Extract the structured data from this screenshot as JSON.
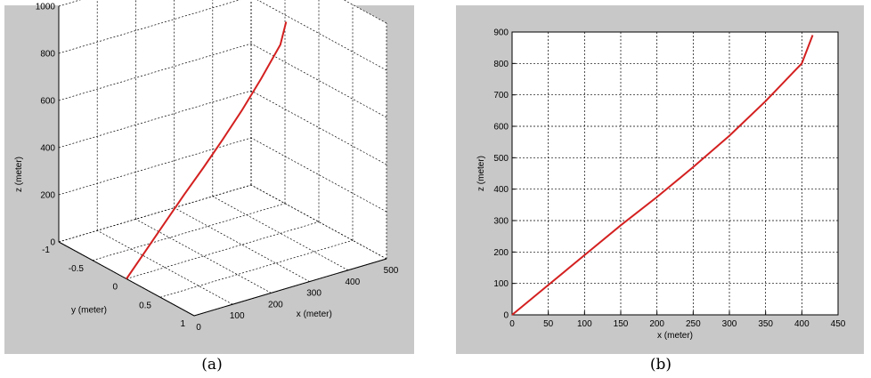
{
  "captions": {
    "a": "(a)",
    "b": "(b)"
  },
  "colors": {
    "figure_bg": "#c8c8c8",
    "axes_bg": "#ffffff",
    "trajectory": "#d42020",
    "grid": "#000000"
  },
  "chart_data": [
    {
      "type": "line",
      "projection": "3d",
      "title": "",
      "xlabel": "x (meter)",
      "ylabel": "y (meter)",
      "zlabel": "z (meter)",
      "xlim": [
        0,
        500
      ],
      "ylim": [
        -1,
        1
      ],
      "zlim": [
        0,
        1000
      ],
      "xticks": [
        "0",
        "100",
        "200",
        "300",
        "400",
        "500"
      ],
      "yticks": [
        "-1",
        "-0.5",
        "0",
        "0.5",
        "1"
      ],
      "zticks": [
        "0",
        "200",
        "400",
        "600",
        "800",
        "1000"
      ],
      "grid": true,
      "series": [
        {
          "x": [
            0,
            50,
            100,
            150,
            200,
            250,
            300,
            350,
            400,
            415
          ],
          "y": [
            0,
            0,
            0,
            0,
            0,
            0,
            0,
            0,
            0,
            0
          ],
          "z": [
            0,
            95,
            190,
            285,
            375,
            470,
            570,
            680,
            800,
            890
          ]
        }
      ]
    },
    {
      "type": "line",
      "title": "",
      "xlabel": "x (meter)",
      "ylabel": "z (meter)",
      "xlim": [
        0,
        450
      ],
      "ylim": [
        0,
        900
      ],
      "xticks": [
        "0",
        "50",
        "100",
        "150",
        "200",
        "250",
        "300",
        "350",
        "400",
        "450"
      ],
      "yticks": [
        "0",
        "100",
        "200",
        "300",
        "400",
        "500",
        "600",
        "700",
        "800",
        "900"
      ],
      "grid": true,
      "series": [
        {
          "x": [
            0,
            50,
            100,
            150,
            200,
            250,
            300,
            350,
            400,
            415
          ],
          "y": [
            0,
            95,
            190,
            285,
            375,
            470,
            570,
            680,
            800,
            890
          ]
        }
      ]
    }
  ]
}
